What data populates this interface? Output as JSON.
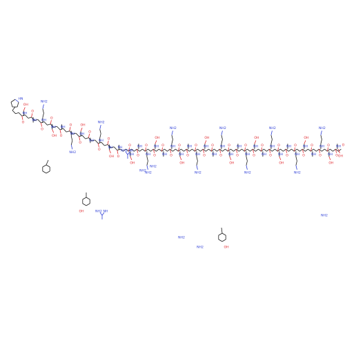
{
  "molecule": {
    "atom_labels": {
      "oxygen": "O",
      "nitrogen": "N",
      "amine_h": "H",
      "amine_group": "NH2",
      "hydroxyl": "OH",
      "amide_nh": "NH",
      "ring_nh": "HN"
    }
  },
  "colors": {
    "carbon": "#1a1a1a",
    "oxygen": "#e0242a",
    "nitrogen": "#2a3bd6",
    "background": "#ffffff"
  }
}
